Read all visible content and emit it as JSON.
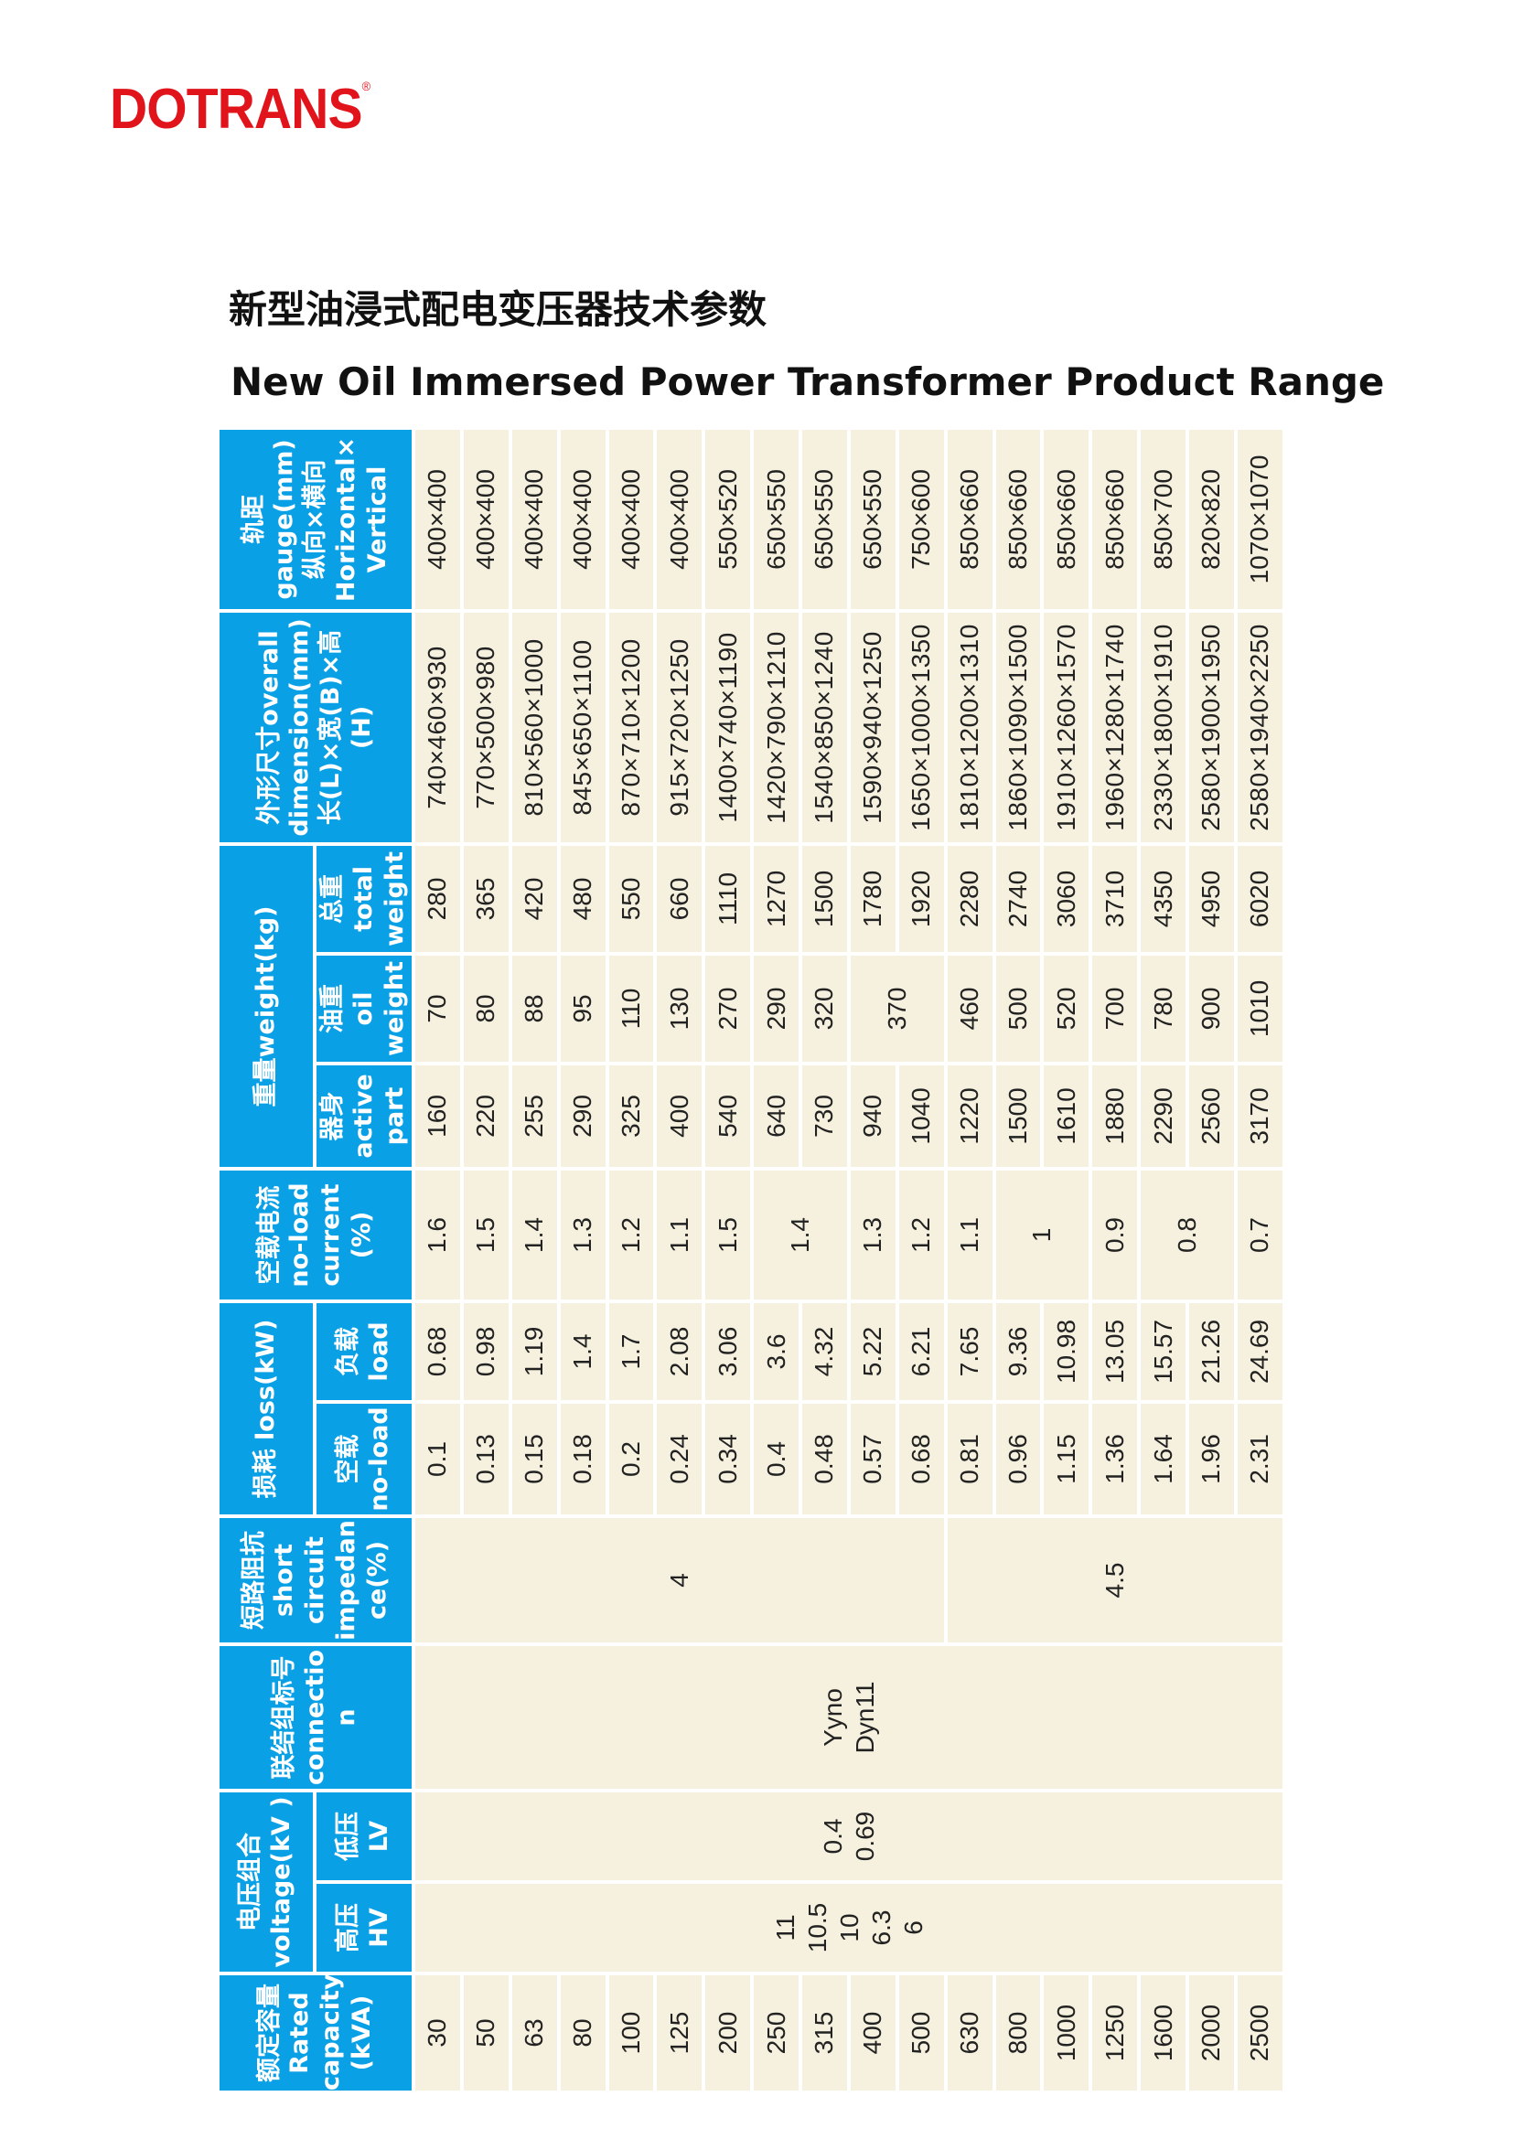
{
  "brand": {
    "name": "DOTRANS",
    "mark": "®"
  },
  "title": {
    "cn": "新型油浸式配电变压器技术参数",
    "en": "New Oil Immersed Power Transformer Product Range"
  },
  "headers": {
    "capacity": [
      "额定容量",
      "Rated",
      "capacity",
      "(kVA)"
    ],
    "voltage_group": [
      "电压组合",
      "voltage(kV )"
    ],
    "hv": [
      "高压",
      "HV"
    ],
    "lv": [
      "低压",
      "LV"
    ],
    "connection": [
      "联结组标号",
      "connectio",
      "n"
    ],
    "impedance": [
      "短路阻抗",
      "short",
      "circuit",
      "impedan",
      "ce(%)"
    ],
    "loss_group": [
      "损耗 loss(kW)"
    ],
    "noload_loss": [
      "空载",
      "no-load"
    ],
    "load_loss": [
      "负载",
      "load"
    ],
    "noload_current": [
      "空载电流",
      "no-load",
      "current",
      "(%)"
    ],
    "weight_group": [
      "重量weight(kg)"
    ],
    "active_part": [
      "器身",
      "active",
      "part"
    ],
    "oil_weight": [
      "油重",
      "oil",
      "weight"
    ],
    "total_weight": [
      "总重",
      "total",
      "weight"
    ],
    "dimension": [
      "外形尺寸overall",
      "dimension(mm)",
      "长(L)×宽(B)×高",
      "(H)"
    ],
    "gauge": [
      "轨距",
      "gauge(mm)",
      "纵向×横向",
      "Horizontal×",
      "Vertical"
    ]
  },
  "merged": {
    "hv": [
      "11",
      "10.5",
      "10",
      "6.3",
      "6"
    ],
    "lv": [
      "0.4",
      "0.69"
    ],
    "connection": [
      "Yyno",
      "Dyn11"
    ],
    "impedance_a": "4",
    "impedance_b": "4.5"
  },
  "rows": [
    {
      "capacity": "30",
      "noload_loss": "0.1",
      "load_loss": "0.68",
      "current": "1.6",
      "active": "160",
      "oil": "70",
      "total": "280",
      "dimension": "740×460×930",
      "gauge": "400×400"
    },
    {
      "capacity": "50",
      "noload_loss": "0.13",
      "load_loss": "0.98",
      "current": "1.5",
      "active": "220",
      "oil": "80",
      "total": "365",
      "dimension": "770×500×980",
      "gauge": "400×400"
    },
    {
      "capacity": "63",
      "noload_loss": "0.15",
      "load_loss": "1.19",
      "current": "1.4",
      "active": "255",
      "oil": "88",
      "total": "420",
      "dimension": "810×560×1000",
      "gauge": "400×400"
    },
    {
      "capacity": "80",
      "noload_loss": "0.18",
      "load_loss": "1.4",
      "current": "1.3",
      "active": "290",
      "oil": "95",
      "total": "480",
      "dimension": "845×650×1100",
      "gauge": "400×400"
    },
    {
      "capacity": "100",
      "noload_loss": "0.2",
      "load_loss": "1.7",
      "current": "1.2",
      "active": "325",
      "oil": "110",
      "total": "550",
      "dimension": "870×710×1200",
      "gauge": "400×400"
    },
    {
      "capacity": "125",
      "noload_loss": "0.24",
      "load_loss": "2.08",
      "current": "1.1",
      "active": "400",
      "oil": "130",
      "total": "660",
      "dimension": "915×720×1250",
      "gauge": "400×400"
    },
    {
      "capacity": "200",
      "noload_loss": "0.34",
      "load_loss": "3.06",
      "current": "1.5",
      "active": "540",
      "oil": "270",
      "total": "1110",
      "dimension": "1400×740×1190",
      "gauge": "550×520"
    },
    {
      "capacity": "250",
      "noload_loss": "0.4",
      "load_loss": "3.6",
      "current": "1.4",
      "active": "640",
      "oil": "290",
      "total": "1270",
      "dimension": "1420×790×1210",
      "gauge": "650×550"
    },
    {
      "capacity": "315",
      "noload_loss": "0.48",
      "load_loss": "4.32",
      "current": null,
      "active": "730",
      "oil": "320",
      "total": "1500",
      "dimension": "1540×850×1240",
      "gauge": "650×550"
    },
    {
      "capacity": "400",
      "noload_loss": "0.57",
      "load_loss": "5.22",
      "current": "1.3",
      "active": "940",
      "oil": "370",
      "total": "1780",
      "dimension": "1590×940×1250",
      "gauge": "650×550"
    },
    {
      "capacity": "500",
      "noload_loss": "0.68",
      "load_loss": "6.21",
      "current": "1.2",
      "active": "1040",
      "oil": null,
      "total": "1920",
      "dimension": "1650×1000×1350",
      "gauge": "750×600"
    },
    {
      "capacity": "630",
      "noload_loss": "0.81",
      "load_loss": "7.65",
      "current": "1.1",
      "active": "1220",
      "oil": "460",
      "total": "2280",
      "dimension": "1810×1200×1310",
      "gauge": "850×660"
    },
    {
      "capacity": "800",
      "noload_loss": "0.96",
      "load_loss": "9.36",
      "current": "1",
      "active": "1500",
      "oil": "500",
      "total": "2740",
      "dimension": "1860×1090×1500",
      "gauge": "850×660"
    },
    {
      "capacity": "1000",
      "noload_loss": "1.15",
      "load_loss": "10.98",
      "current": null,
      "active": "1610",
      "oil": "520",
      "total": "3060",
      "dimension": "1910×1260×1570",
      "gauge": "850×660"
    },
    {
      "capacity": "1250",
      "noload_loss": "1.36",
      "load_loss": "13.05",
      "current": "0.9",
      "active": "1880",
      "oil": "700",
      "total": "3710",
      "dimension": "1960×1280×1740",
      "gauge": "850×660"
    },
    {
      "capacity": "1600",
      "noload_loss": "1.64",
      "load_loss": "15.57",
      "current": "0.8",
      "active": "2290",
      "oil": "780",
      "total": "4350",
      "dimension": "2330×1800×1910",
      "gauge": "850×700"
    },
    {
      "capacity": "2000",
      "noload_loss": "1.96",
      "load_loss": "21.26",
      "current": null,
      "active": "2560",
      "oil": "900",
      "total": "4950",
      "dimension": "2580×1900×1950",
      "gauge": "820×820"
    },
    {
      "capacity": "2500",
      "noload_loss": "2.31",
      "load_loss": "24.69",
      "current": "0.7",
      "active": "3170",
      "oil": "1010",
      "total": "6020",
      "dimension": "2580×1940×2250",
      "gauge": "1070×1070"
    }
  ]
}
